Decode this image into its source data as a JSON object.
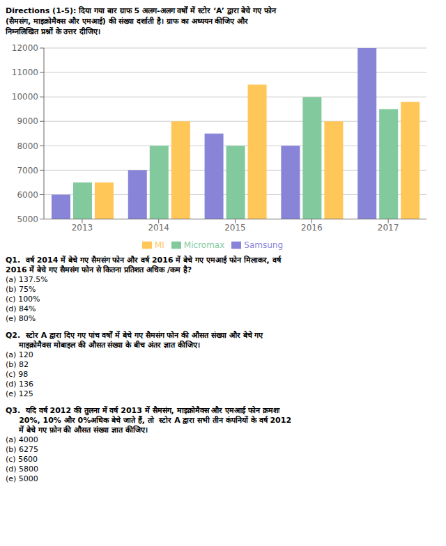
{
  "chart_data": {
    "type": "bar",
    "title": "Directions (1-5): दिया गया बार ग्राफ 5 अलग-अलग वर्षों में स्टोर ‘A’ द्वारा बेचे गए फोन\n(सैमसंग, माइक्रोमैक्स और एमआई) की संख्या दर्शाती है। ग्राफ का अध्ययन कीजिए और\nनिम्नलिखित प्रश्नों के उत्तर दीजिए।",
    "categories": [
      "2013",
      "2014",
      "2015",
      "2016",
      "2017"
    ],
    "series": [
      {
        "name": "Samsung",
        "color": "#8884d8",
        "values": [
          6000,
          7000,
          8500,
          8000,
          12000
        ]
      },
      {
        "name": "Micromax",
        "color": "#82ca9d",
        "values": [
          6500,
          8000,
          8000,
          10000,
          9500
        ]
      },
      {
        "name": "MI",
        "color": "#ffc658",
        "values": [
          6500,
          9000,
          10500,
          9000,
          9800
        ]
      }
    ],
    "ylim": [
      5000,
      12000
    ],
    "yticks": [
      5000,
      6000,
      7000,
      8000,
      9000,
      10000,
      11000,
      12000
    ],
    "grid": true,
    "legend": "bottom",
    "annotations": [
      "Q1.  वर्ष 2014 में बेचे गए सैमसंग फोन और वर्ष 2016 में बेचे गए एमआई फोन मिलाकर, वर्ष",
      "2016 में बेचे गए सैमसंग फोन से कितना प्रतिशत अधिक /कम है?",
      "(a) 137.5%",
      "(b) 75%",
      "(c) 100%",
      "(d) 84%",
      "(e) 80%",
      "Q2.  स्टोर A द्वारा दिए गए पांच वर्षों में बेचे गए सैमसंग फोन की औसत संख्या और बेचे गए",
      "     माइक्रोमैक्स मोबाइल की औसत संख्या के बीच अंतर ज्ञात कीजिए।",
      "(a) 120",
      "(b) 82",
      "(c) 98",
      "(d) 136",
      "(e) 125",
      "Q3.  यदि वर्ष 2012 की तुलना में वर्ष 2013 में सैमसंग, माइक्रोमैक्स और एमआई फोन क्रमशः",
      "     20%, 10% और 0%अधिक बेचे जाते हैं, तो  स्टोर A द्वारा सभी तीन कंपनियों के वर्ष 2012",
      "     में बेचे गए फ़ोन की औसत संख्या ज्ञात कीजिए।",
      "(a) 4000",
      "(b) 6275",
      "(c) 5600",
      "(d) 5800",
      "(e) 5000"
    ]
  }
}
